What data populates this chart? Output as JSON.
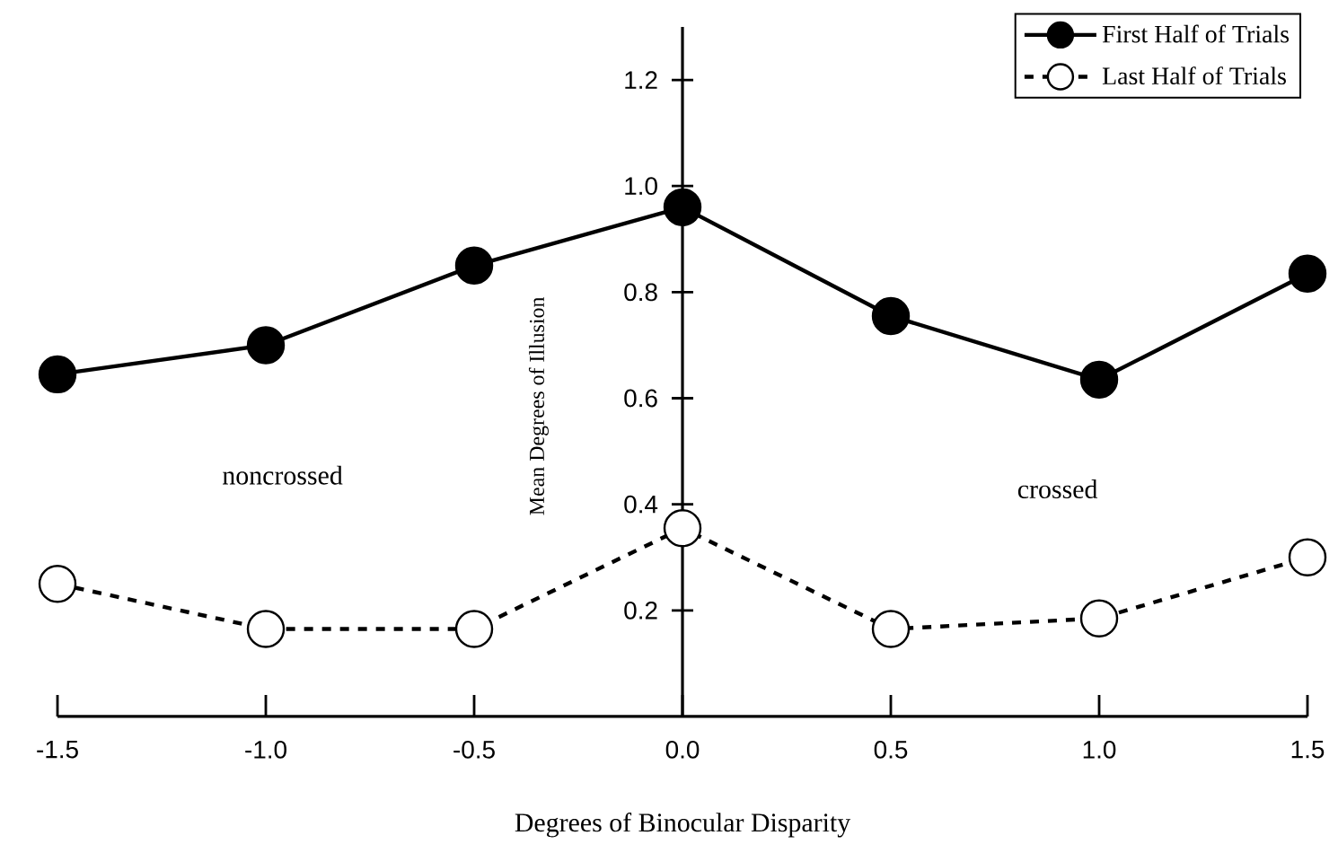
{
  "chart_data": {
    "type": "line",
    "xlabel": "Degrees of Binocular Disparity",
    "ylabel": "Mean Degrees of Illusion",
    "x": [
      -1.5,
      -1.0,
      -0.5,
      0.0,
      0.5,
      1.0,
      1.5
    ],
    "series": [
      {
        "name": "First Half of Trials",
        "color": "#000000",
        "line_style": "solid",
        "values": [
          0.645,
          0.7,
          0.85,
          0.96,
          0.755,
          0.635,
          0.835
        ]
      },
      {
        "name": "Last Half of Trials",
        "color": "#000000",
        "line_style": "dashed",
        "values": [
          0.25,
          0.165,
          0.165,
          0.355,
          0.165,
          0.185,
          0.3
        ]
      }
    ],
    "marker": "circle",
    "legend": "top right",
    "xlim": [
      -1.5,
      1.5
    ],
    "ylim": [
      0,
      1.3
    ],
    "xticks": [
      {
        "value": -1.5,
        "label": "-1.5"
      },
      {
        "value": -1.0,
        "label": "-1.0"
      },
      {
        "value": -0.5,
        "label": "-0.5"
      },
      {
        "value": 0.0,
        "label": "0.0"
      },
      {
        "value": 0.5,
        "label": "0.5"
      },
      {
        "value": 1.0,
        "label": "1.0"
      },
      {
        "value": 1.5,
        "label": "1.5"
      }
    ],
    "yticks": [
      0.2,
      0.4,
      0.6,
      0.8,
      {
        "value": 1.0,
        "label": "1.0"
      },
      1.2
    ],
    "annotations": [
      "noncrossed",
      "crossed"
    ]
  }
}
